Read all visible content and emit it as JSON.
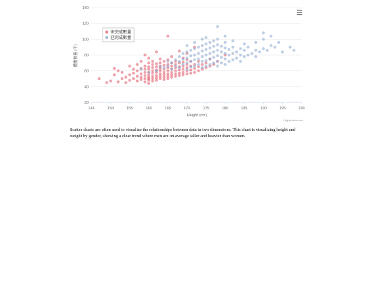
{
  "chart_data": {
    "type": "scatter",
    "title": "",
    "xlabel": "Height (cm)",
    "ylabel": "體重數量 (千)",
    "xlim": [
      145,
      200
    ],
    "ylim": [
      20,
      140
    ],
    "xticks": [
      145,
      150,
      155,
      160,
      165,
      170,
      175,
      180,
      185,
      190,
      195,
      200
    ],
    "yticks": [
      20,
      40,
      60,
      80,
      100,
      120,
      140
    ],
    "grid": true,
    "legend_position": "top-left",
    "series": [
      {
        "name": "未完成數量",
        "color": "#e05a6a",
        "points": [
          [
            147,
            50
          ],
          [
            149,
            45
          ],
          [
            150,
            47
          ],
          [
            151,
            55
          ],
          [
            151,
            63
          ],
          [
            152,
            46
          ],
          [
            152,
            60
          ],
          [
            153,
            50
          ],
          [
            153,
            58
          ],
          [
            154,
            45
          ],
          [
            154,
            52
          ],
          [
            155,
            48
          ],
          [
            155,
            55
          ],
          [
            155,
            66
          ],
          [
            156,
            50
          ],
          [
            156,
            57
          ],
          [
            156,
            62
          ],
          [
            157,
            47
          ],
          [
            157,
            53
          ],
          [
            157,
            60
          ],
          [
            157,
            68
          ],
          [
            158,
            49
          ],
          [
            158,
            52
          ],
          [
            158,
            56
          ],
          [
            158,
            63
          ],
          [
            158,
            72
          ],
          [
            159,
            46
          ],
          [
            159,
            50
          ],
          [
            159,
            54
          ],
          [
            159,
            58
          ],
          [
            159,
            62
          ],
          [
            159,
            66
          ],
          [
            159,
            80
          ],
          [
            160,
            44
          ],
          [
            160,
            48
          ],
          [
            160,
            50
          ],
          [
            160,
            52
          ],
          [
            160,
            55
          ],
          [
            160,
            58
          ],
          [
            160,
            62
          ],
          [
            160,
            65
          ],
          [
            160,
            70
          ],
          [
            160,
            76
          ],
          [
            161,
            47
          ],
          [
            161,
            50
          ],
          [
            161,
            53
          ],
          [
            161,
            57
          ],
          [
            161,
            60
          ],
          [
            161,
            64
          ],
          [
            161,
            68
          ],
          [
            161,
            72
          ],
          [
            162,
            48
          ],
          [
            162,
            51
          ],
          [
            162,
            54
          ],
          [
            162,
            58
          ],
          [
            162,
            61
          ],
          [
            162,
            65
          ],
          [
            162,
            69
          ],
          [
            162,
            84
          ],
          [
            163,
            50
          ],
          [
            163,
            53
          ],
          [
            163,
            56
          ],
          [
            163,
            60
          ],
          [
            163,
            63
          ],
          [
            163,
            66
          ],
          [
            163,
            70
          ],
          [
            163,
            75
          ],
          [
            164,
            49
          ],
          [
            164,
            52
          ],
          [
            164,
            55
          ],
          [
            164,
            58
          ],
          [
            164,
            62
          ],
          [
            164,
            67
          ],
          [
            164,
            72
          ],
          [
            165,
            50
          ],
          [
            165,
            53
          ],
          [
            165,
            56
          ],
          [
            165,
            60
          ],
          [
            165,
            64
          ],
          [
            165,
            68
          ],
          [
            165,
            74
          ],
          [
            165,
            104
          ],
          [
            166,
            52
          ],
          [
            166,
            55
          ],
          [
            166,
            58
          ],
          [
            166,
            62
          ],
          [
            166,
            66
          ],
          [
            166,
            70
          ],
          [
            166,
            78
          ],
          [
            167,
            53
          ],
          [
            167,
            56
          ],
          [
            167,
            60
          ],
          [
            167,
            64
          ],
          [
            167,
            68
          ],
          [
            167,
            72
          ],
          [
            168,
            54
          ],
          [
            168,
            57
          ],
          [
            168,
            61
          ],
          [
            168,
            65
          ],
          [
            168,
            70
          ],
          [
            168,
            85
          ],
          [
            169,
            55
          ],
          [
            169,
            58
          ],
          [
            169,
            62
          ],
          [
            169,
            66
          ],
          [
            169,
            71
          ],
          [
            169,
            76
          ],
          [
            170,
            56
          ],
          [
            170,
            60
          ],
          [
            170,
            64
          ],
          [
            170,
            68
          ],
          [
            170,
            74
          ],
          [
            170,
            82
          ],
          [
            171,
            57
          ],
          [
            171,
            61
          ],
          [
            171,
            66
          ],
          [
            171,
            72
          ],
          [
            172,
            58
          ],
          [
            172,
            63
          ],
          [
            172,
            68
          ],
          [
            172,
            90
          ],
          [
            173,
            60
          ],
          [
            173,
            65
          ],
          [
            173,
            72
          ],
          [
            174,
            62
          ],
          [
            174,
            68
          ],
          [
            175,
            64
          ],
          [
            175,
            70
          ],
          [
            176,
            66
          ],
          [
            176,
            75
          ],
          [
            177,
            68
          ],
          [
            178,
            72
          ],
          [
            180,
            80
          ]
        ]
      },
      {
        "name": "已完成數量",
        "color": "#8aa8cf",
        "points": [
          [
            158,
            62
          ],
          [
            160,
            58
          ],
          [
            162,
            60
          ],
          [
            163,
            65
          ],
          [
            164,
            64
          ],
          [
            165,
            66
          ],
          [
            165,
            72
          ],
          [
            166,
            62
          ],
          [
            166,
            70
          ],
          [
            167,
            66
          ],
          [
            167,
            74
          ],
          [
            168,
            64
          ],
          [
            168,
            72
          ],
          [
            168,
            78
          ],
          [
            169,
            68
          ],
          [
            169,
            75
          ],
          [
            169,
            82
          ],
          [
            170,
            62
          ],
          [
            170,
            70
          ],
          [
            170,
            76
          ],
          [
            170,
            84
          ],
          [
            170,
            92
          ],
          [
            171,
            65
          ],
          [
            171,
            72
          ],
          [
            171,
            79
          ],
          [
            171,
            86
          ],
          [
            172,
            66
          ],
          [
            172,
            74
          ],
          [
            172,
            80
          ],
          [
            172,
            88
          ],
          [
            172,
            96
          ],
          [
            173,
            68
          ],
          [
            173,
            75
          ],
          [
            173,
            82
          ],
          [
            173,
            90
          ],
          [
            174,
            64
          ],
          [
            174,
            72
          ],
          [
            174,
            78
          ],
          [
            174,
            85
          ],
          [
            174,
            92
          ],
          [
            174,
            100
          ],
          [
            175,
            66
          ],
          [
            175,
            73
          ],
          [
            175,
            80
          ],
          [
            175,
            87
          ],
          [
            175,
            94
          ],
          [
            175,
            102
          ],
          [
            176,
            68
          ],
          [
            176,
            75
          ],
          [
            176,
            82
          ],
          [
            176,
            89
          ],
          [
            176,
            96
          ],
          [
            177,
            70
          ],
          [
            177,
            77
          ],
          [
            177,
            84
          ],
          [
            177,
            91
          ],
          [
            177,
            98
          ],
          [
            178,
            66
          ],
          [
            178,
            72
          ],
          [
            178,
            79
          ],
          [
            178,
            86
          ],
          [
            178,
            93
          ],
          [
            178,
            100
          ],
          [
            178,
            116
          ],
          [
            179,
            70
          ],
          [
            179,
            77
          ],
          [
            179,
            84
          ],
          [
            179,
            91
          ],
          [
            180,
            68
          ],
          [
            180,
            75
          ],
          [
            180,
            82
          ],
          [
            180,
            89
          ],
          [
            180,
            96
          ],
          [
            180,
            104
          ],
          [
            181,
            72
          ],
          [
            181,
            80
          ],
          [
            181,
            87
          ],
          [
            182,
            74
          ],
          [
            182,
            82
          ],
          [
            182,
            90
          ],
          [
            182,
            98
          ],
          [
            183,
            76
          ],
          [
            183,
            84
          ],
          [
            184,
            72
          ],
          [
            184,
            80
          ],
          [
            184,
            88
          ],
          [
            185,
            78
          ],
          [
            185,
            86
          ],
          [
            185,
            94
          ],
          [
            186,
            80
          ],
          [
            186,
            90
          ],
          [
            187,
            82
          ],
          [
            188,
            78
          ],
          [
            188,
            86
          ],
          [
            188,
            96
          ],
          [
            189,
            84
          ],
          [
            190,
            88
          ],
          [
            190,
            100
          ],
          [
            190,
            108
          ],
          [
            191,
            86
          ],
          [
            192,
            92
          ],
          [
            192,
            104
          ],
          [
            193,
            90
          ],
          [
            194,
            96
          ],
          [
            195,
            84
          ],
          [
            197,
            90
          ],
          [
            198,
            86
          ]
        ]
      }
    ]
  },
  "credits": "Highcharts.com",
  "description": "Scatter charts are often used to visualize the relationships between data in two dimensions. This chart is visualizing height and weight by gender, showing a clear trend where men are on average taller and heavier than women."
}
